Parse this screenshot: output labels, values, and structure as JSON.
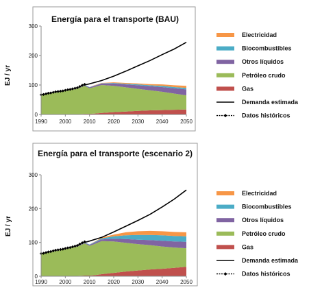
{
  "chart_data": [
    {
      "type": "area",
      "title": "Energía para el transporte (BAU)",
      "xlabel": "",
      "ylabel": "EJ / yr",
      "xlim": [
        1990,
        2050
      ],
      "ylim": [
        0,
        300
      ],
      "x_ticks": [
        1990,
        2000,
        2010,
        2020,
        2030,
        2040,
        2050
      ],
      "y_ticks": [
        0,
        100,
        200,
        300
      ],
      "grid": false,
      "legend_position": "right",
      "x": [
        1990,
        1995,
        2000,
        2005,
        2008,
        2010,
        2012,
        2015,
        2020,
        2025,
        2030,
        2035,
        2040,
        2045,
        2050
      ],
      "series": [
        {
          "name": "Gas",
          "color": "#c0504d",
          "values": [
            1,
            1,
            1,
            1,
            2,
            2,
            3,
            5,
            8,
            10,
            12,
            14,
            15,
            16,
            17
          ]
        },
        {
          "name": "Petróleo crudo",
          "color": "#9bbb59",
          "values": [
            66,
            72,
            79,
            87,
            95,
            87,
            90,
            95,
            89,
            82,
            75,
            68,
            62,
            55,
            48
          ]
        },
        {
          "name": "Otros líquidos",
          "color": "#8064a2",
          "values": [
            0,
            0,
            0,
            1,
            2,
            3,
            4,
            5,
            8,
            10,
            12,
            14,
            16,
            18,
            20
          ]
        },
        {
          "name": "Biocombustibles",
          "color": "#4bacc6",
          "values": [
            0,
            0,
            0,
            0,
            1,
            1,
            1,
            1,
            2,
            2,
            3,
            3,
            4,
            4,
            5
          ]
        },
        {
          "name": "Electricidad",
          "color": "#f79646",
          "values": [
            0,
            0,
            0,
            0,
            0,
            0,
            1,
            1,
            2,
            3,
            3,
            4,
            5,
            6,
            7
          ]
        }
      ],
      "demand": {
        "name": "Demanda estimada",
        "x": [
          2008,
          2010,
          2015,
          2020,
          2025,
          2030,
          2035,
          2040,
          2045,
          2050
        ],
        "values": [
          100,
          104,
          115,
          130,
          147,
          165,
          183,
          203,
          222,
          245
        ]
      },
      "historical": {
        "name": "Datos históricos",
        "x": [
          1990,
          1991,
          1992,
          1993,
          1994,
          1995,
          1996,
          1997,
          1998,
          1999,
          2000,
          2001,
          2002,
          2003,
          2004,
          2005,
          2006,
          2007,
          2008
        ],
        "values": [
          67,
          68,
          70,
          72,
          73,
          75,
          77,
          78,
          79,
          80,
          82,
          84,
          85,
          87,
          89,
          91,
          95,
          99,
          102
        ]
      },
      "legend_order": [
        "Electricidad",
        "Biocombustibles",
        "Otros líquidos",
        "Petróleo crudo",
        "Gas",
        "Demanda estimada",
        "Datos históricos"
      ]
    },
    {
      "type": "area",
      "title": "Energía para el transporte (escenario 2)",
      "xlabel": "",
      "ylabel": "EJ / yr",
      "xlim": [
        1990,
        2050
      ],
      "ylim": [
        0,
        300
      ],
      "x_ticks": [
        1990,
        2000,
        2010,
        2020,
        2030,
        2040,
        2050
      ],
      "y_ticks": [
        0,
        100,
        200,
        300
      ],
      "grid": false,
      "legend_position": "right",
      "x": [
        1990,
        1995,
        2000,
        2005,
        2008,
        2010,
        2012,
        2015,
        2020,
        2025,
        2030,
        2035,
        2040,
        2045,
        2050
      ],
      "series": [
        {
          "name": "Gas",
          "color": "#c0504d",
          "values": [
            1,
            1,
            1,
            1,
            2,
            2,
            3,
            6,
            10,
            14,
            17,
            20,
            22,
            25,
            28
          ]
        },
        {
          "name": "Petróleo crudo",
          "color": "#9bbb59",
          "values": [
            66,
            72,
            79,
            87,
            95,
            88,
            92,
            98,
            93,
            85,
            78,
            72,
            66,
            60,
            55
          ]
        },
        {
          "name": "Otros líquidos",
          "color": "#8064a2",
          "values": [
            0,
            0,
            0,
            1,
            2,
            3,
            4,
            5,
            8,
            11,
            13,
            15,
            17,
            18,
            19
          ]
        },
        {
          "name": "Biocombustibles",
          "color": "#4bacc6",
          "values": [
            0,
            0,
            0,
            0,
            1,
            1,
            2,
            3,
            7,
            11,
            14,
            15,
            16,
            16,
            16
          ]
        },
        {
          "name": "Electricidad",
          "color": "#f79646",
          "values": [
            0,
            0,
            0,
            0,
            0,
            0,
            1,
            2,
            5,
            9,
            11,
            12,
            12,
            12,
            12
          ]
        }
      ],
      "demand": {
        "name": "Demanda estimada",
        "x": [
          2008,
          2010,
          2015,
          2020,
          2025,
          2030,
          2035,
          2040,
          2045,
          2050
        ],
        "values": [
          100,
          104,
          115,
          131,
          148,
          165,
          183,
          205,
          228,
          255
        ]
      },
      "historical": {
        "name": "Datos históricos",
        "x": [
          1990,
          1991,
          1992,
          1993,
          1994,
          1995,
          1996,
          1997,
          1998,
          1999,
          2000,
          2001,
          2002,
          2003,
          2004,
          2005,
          2006,
          2007,
          2008
        ],
        "values": [
          67,
          68,
          70,
          72,
          73,
          75,
          77,
          78,
          79,
          80,
          82,
          84,
          85,
          87,
          89,
          91,
          95,
          99,
          102
        ]
      },
      "legend_order": [
        "Electricidad",
        "Biocombustibles",
        "Otros líquidos",
        "Petróleo crudo",
        "Gas",
        "Demanda estimada",
        "Datos históricos"
      ]
    }
  ]
}
